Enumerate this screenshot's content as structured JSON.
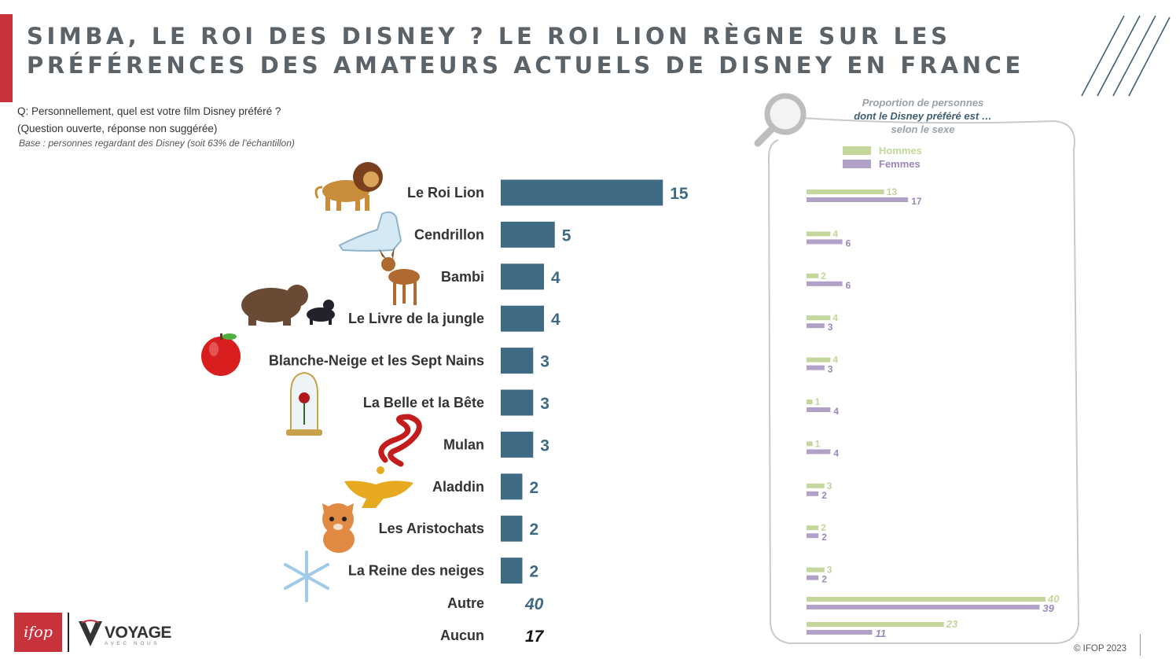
{
  "title": {
    "line1": "SIMBA, LE ROI DES DISNEY ? LE ROI LION RÈGNE SUR LES",
    "line2": "PRÉFÉRENCES DES AMATEURS ACTUELS DE DISNEY EN FRANCE"
  },
  "question": {
    "line1": "Q: Personnellement, quel est votre film Disney préféré ?",
    "line2": "(Question ouverte, réponse non suggérée)",
    "base": "Base : personnes regardant des Disney (soit 63% de l’échantillon)"
  },
  "side_panel": {
    "header_line1": "Proportion de personnes",
    "header_line2": "dont le Disney préféré est …",
    "header_line3": "selon le sexe",
    "legend_men": "Hommes",
    "legend_women": "Femmes"
  },
  "colors": {
    "accent_red": "#c8323b",
    "bar_main": "#3e6a84",
    "men": "#c3d69b",
    "women": "#b1a0c7",
    "title_gray": "#5b6268"
  },
  "footer": {
    "logo_text": "ifop",
    "partner_text": "VOYAGE",
    "partner_sub": "AVEC NOUS",
    "copyright": "© IFOP 2023"
  },
  "chart_data": [
    {
      "type": "bar",
      "orientation": "horizontal",
      "categories": [
        "Le Roi Lion",
        "Cendrillon",
        "Bambi",
        "Le Livre de la jungle",
        "Blanche-Neige et les Sept Nains",
        "La Belle et la Bête",
        "Mulan",
        "Aladdin",
        "Les Aristochats",
        "La Reine des neiges"
      ],
      "values": [
        15,
        5,
        4,
        4,
        3,
        3,
        3,
        2,
        2,
        2
      ],
      "others": [
        {
          "label": "Autre",
          "value": 40,
          "color": "#3e6a84"
        },
        {
          "label": "Aucun",
          "value": 17,
          "color": "#111111"
        }
      ]
    },
    {
      "type": "bar",
      "orientation": "horizontal",
      "categories": [
        "Le Roi Lion",
        "Cendrillon",
        "Bambi",
        "Le Livre de la jungle",
        "Blanche-Neige et les Sept Nains",
        "La Belle et la Bête",
        "Mulan",
        "Aladdin",
        "Les Aristochats",
        "La Reine des neiges",
        "Autre",
        "Aucun"
      ],
      "series": [
        {
          "name": "Hommes",
          "values": [
            13,
            4,
            2,
            4,
            4,
            1,
            1,
            3,
            2,
            3,
            40,
            23
          ]
        },
        {
          "name": "Femmes",
          "values": [
            17,
            6,
            6,
            3,
            3,
            4,
            4,
            2,
            2,
            2,
            39,
            11
          ]
        }
      ],
      "legend": "top"
    }
  ]
}
